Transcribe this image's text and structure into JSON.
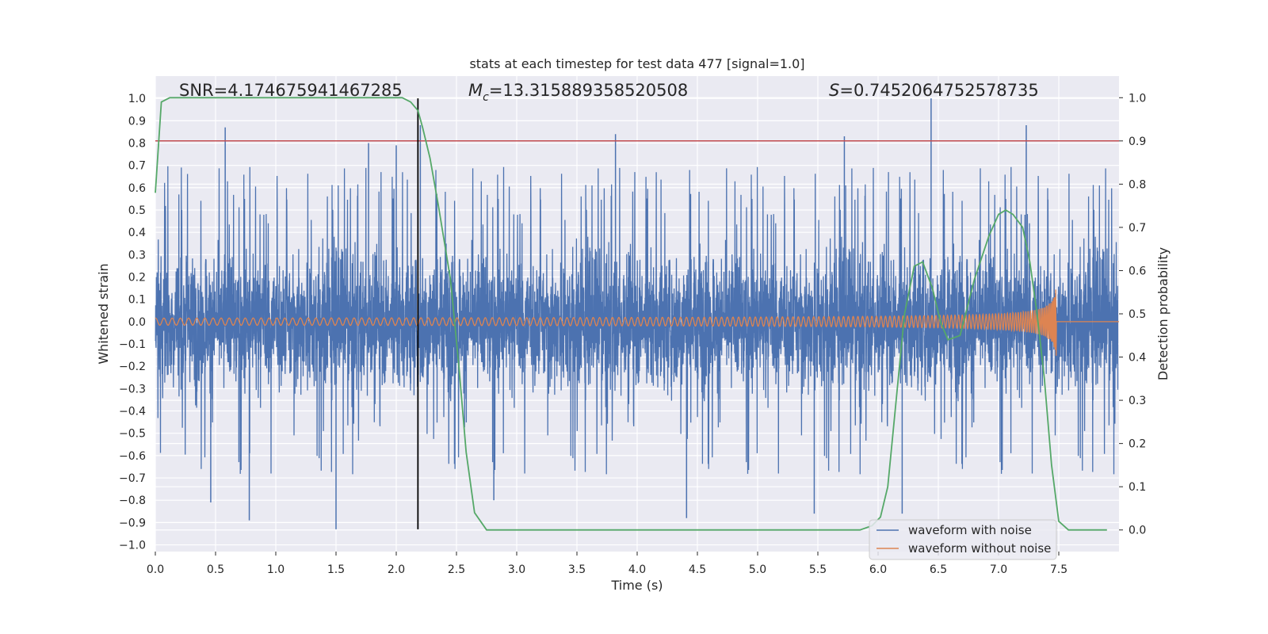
{
  "chart_data": {
    "type": "line",
    "title": "stats at each timestep for test data 477 [signal=1.0]",
    "xlabel": "Time (s)",
    "ylabel": "Whitened strain",
    "ylabel_right": "Detection probability",
    "xlim": [
      0.0,
      8.0
    ],
    "ylim": [
      -1.03,
      1.1
    ],
    "ylim_right": [
      -0.05,
      1.05
    ],
    "xticks": [
      0.0,
      0.5,
      1.0,
      1.5,
      2.0,
      2.5,
      3.0,
      3.5,
      4.0,
      4.5,
      5.0,
      5.5,
      6.0,
      6.5,
      7.0,
      7.5
    ],
    "xtick_labels": [
      "0.0",
      "0.5",
      "1.0",
      "1.5",
      "2.0",
      "2.5",
      "3.0",
      "3.5",
      "4.0",
      "4.5",
      "5.0",
      "5.5",
      "6.0",
      "6.5",
      "7.0",
      "7.5"
    ],
    "yticks": [
      1.0,
      0.9,
      0.8,
      0.7,
      0.6,
      0.5,
      0.4,
      0.3,
      0.2,
      0.1,
      0.0,
      -0.1,
      -0.2,
      -0.3,
      -0.4,
      -0.5,
      -0.6,
      -0.7,
      -0.8,
      -0.9,
      -1.0
    ],
    "ytick_labels": [
      "1.0",
      "0.9",
      "0.8",
      "0.7",
      "0.6",
      "0.5",
      "0.4",
      "0.3",
      "0.2",
      "0.1",
      "0.0",
      "−0.1",
      "−0.2",
      "−0.3",
      "−0.4",
      "−0.5",
      "−0.6",
      "−0.7",
      "−0.8",
      "−0.9",
      "−1.0"
    ],
    "yticks_right": [
      1.0,
      0.9,
      0.8,
      0.7,
      0.6,
      0.5,
      0.4,
      0.3,
      0.2,
      0.1,
      0.0
    ],
    "ytick_labels_right": [
      "1.0",
      "0.9",
      "0.8",
      "0.7",
      "0.6",
      "0.5",
      "0.4",
      "0.3",
      "0.2",
      "0.1",
      "0.0"
    ],
    "grid": true,
    "legend_position": "lower-right",
    "annotations": {
      "snr": "SNR=4.174675941467285",
      "mc_symbol": "M",
      "mc_sub": "c",
      "mc_value": "=13.315889358520508",
      "s_symbol": "S",
      "s_value": "=0.7452064752578735"
    },
    "series": [
      {
        "name": "waveform with noise",
        "color": "#4c72b0",
        "description_values": "dense noise spanning roughly -0.93 to 1.0",
        "noise_amplitude": 0.33,
        "spikes": [
          {
            "x": 0.58,
            "y": 0.87
          },
          {
            "x": 0.78,
            "y": -0.89
          },
          {
            "x": 1.5,
            "y": -0.93
          },
          {
            "x": 1.77,
            "y": 0.8
          },
          {
            "x": 2.2,
            "y": 0.88
          },
          {
            "x": 3.82,
            "y": 0.84
          },
          {
            "x": 4.41,
            "y": -0.88
          },
          {
            "x": 5.72,
            "y": 0.83
          },
          {
            "x": 6.44,
            "y": 1.0
          },
          {
            "x": 7.23,
            "y": 0.88
          },
          {
            "x": 0.46,
            "y": -0.81
          },
          {
            "x": 2.0,
            "y": 0.79
          },
          {
            "x": 2.81,
            "y": -0.8
          },
          {
            "x": 5.47,
            "y": -0.86
          },
          {
            "x": 6.2,
            "y": -0.86
          }
        ]
      },
      {
        "name": "waveform without noise",
        "color": "#dd8452",
        "chirp_start": 0.0,
        "chirp_end": 7.48,
        "amp_start": 0.01,
        "amp_end": 0.18
      },
      {
        "name": "detection probability",
        "axis": "right",
        "color": "#55a868",
        "x": [
          0.0,
          0.05,
          0.12,
          0.2,
          0.4,
          0.8,
          1.2,
          1.6,
          1.9,
          2.05,
          2.12,
          2.18,
          2.22,
          2.28,
          2.35,
          2.45,
          2.52,
          2.58,
          2.65,
          2.75,
          3.0,
          4.0,
          5.0,
          5.5,
          5.85,
          5.95,
          6.02,
          6.08,
          6.15,
          6.22,
          6.3,
          6.37,
          6.45,
          6.52,
          6.58,
          6.68,
          6.8,
          6.92,
          7.0,
          7.06,
          7.12,
          7.2,
          7.26,
          7.32,
          7.38,
          7.44,
          7.5,
          7.58,
          7.7,
          7.9
        ],
        "y": [
          0.78,
          0.99,
          1.0,
          1.0,
          1.0,
          1.0,
          1.0,
          1.0,
          1.0,
          1.0,
          0.99,
          0.97,
          0.93,
          0.86,
          0.75,
          0.58,
          0.38,
          0.18,
          0.04,
          0.0,
          0.0,
          0.0,
          0.0,
          0.0,
          0.0,
          0.01,
          0.03,
          0.1,
          0.3,
          0.5,
          0.61,
          0.62,
          0.56,
          0.48,
          0.44,
          0.45,
          0.58,
          0.68,
          0.73,
          0.74,
          0.73,
          0.7,
          0.62,
          0.5,
          0.35,
          0.15,
          0.02,
          0.0,
          0.0,
          0.0
        ]
      }
    ],
    "threshold_line": {
      "y": 0.81,
      "color": "#c44e52"
    },
    "vertical_line": {
      "x": 2.18,
      "color": "#000000"
    }
  }
}
